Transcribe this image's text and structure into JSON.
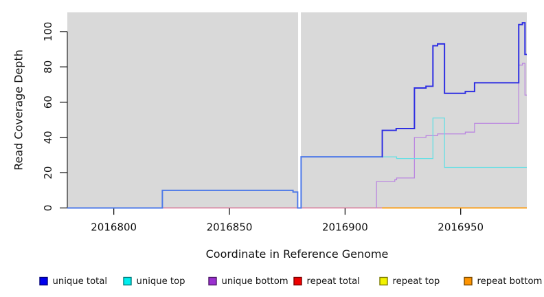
{
  "axes": {
    "x_title": "Coordinate in Reference Genome",
    "y_title": "Read Coverage Depth"
  },
  "chart_data": {
    "type": "line",
    "subtype": "step-after",
    "title": "",
    "xlabel": "Coordinate in Reference Genome",
    "ylabel": "Read Coverage Depth",
    "xlim": [
      2016779.9,
      2016978.6
    ],
    "ylim": [
      -0.2,
      110.9
    ],
    "x_ticks": [
      2016800,
      2016850,
      2016900,
      2016950
    ],
    "y_ticks": [
      0,
      20,
      40,
      60,
      80,
      100
    ],
    "grid": false,
    "panel_bg": "#d9d9d9",
    "axis_color": "#000000",
    "gap_region": {
      "x_start": 2016879.7,
      "x_end": 2016880.9,
      "color": "#ffffff"
    },
    "series": [
      {
        "name": "repeat total",
        "color": "#d4557f",
        "width": 1.2,
        "points": [
          [
            2016779.9,
            0
          ],
          [
            2016978.6,
            0
          ]
        ]
      },
      {
        "name": "repeat top",
        "color": "#f2f200",
        "width": 1.2,
        "points": [
          [
            2016916,
            0
          ],
          [
            2016978.6,
            0
          ]
        ]
      },
      {
        "name": "repeat bottom",
        "color": "#ff9400",
        "width": 1.6,
        "points": [
          [
            2016916,
            0
          ],
          [
            2016978.6,
            0
          ]
        ]
      },
      {
        "name": "unique bottom",
        "color": "#bb87e0",
        "width": 1.3,
        "points": [
          [
            2016913.5,
            0
          ],
          [
            2016913.6,
            15
          ],
          [
            2016921.5,
            16
          ],
          [
            2016922.3,
            17
          ],
          [
            2016930,
            40
          ],
          [
            2016935,
            41
          ],
          [
            2016940,
            42
          ],
          [
            2016952,
            43
          ],
          [
            2016956,
            48
          ],
          [
            2016975.1,
            81
          ],
          [
            2016976.7,
            82
          ],
          [
            2016977.8,
            64
          ],
          [
            2016978.6,
            64
          ]
        ]
      },
      {
        "name": "unique top",
        "color": "#66dfe4",
        "width": 1.3,
        "points": [
          [
            2016881,
            29
          ],
          [
            2016922.3,
            28
          ],
          [
            2016938,
            51
          ],
          [
            2016943,
            23
          ],
          [
            2016978.6,
            23
          ]
        ]
      },
      {
        "name": "unique total low",
        "color": "#4d79e8",
        "width": 2,
        "points": [
          [
            2016779.9,
            0
          ],
          [
            2016821,
            10
          ],
          [
            2016877.5,
            9
          ],
          [
            2016879.5,
            0
          ],
          [
            2016881,
            29
          ],
          [
            2016916,
            29
          ]
        ]
      },
      {
        "name": "unique total high",
        "color": "#2f2fe2",
        "width": 2,
        "points": [
          [
            2016916,
            29
          ],
          [
            2016916.1,
            44
          ],
          [
            2016922.1,
            45
          ],
          [
            2016930,
            68
          ],
          [
            2016935,
            69
          ],
          [
            2016938,
            92
          ],
          [
            2016940,
            93
          ],
          [
            2016943,
            65
          ],
          [
            2016952,
            66
          ],
          [
            2016956,
            71
          ],
          [
            2016975.1,
            104
          ],
          [
            2016976.7,
            105
          ],
          [
            2016977.8,
            87
          ],
          [
            2016978.6,
            87
          ]
        ]
      }
    ],
    "legend": [
      {
        "label": "unique total",
        "fill": "#0000ee",
        "border": "#00007a"
      },
      {
        "label": "unique top",
        "fill": "#00eeee",
        "border": "#007a7a"
      },
      {
        "label": "unique bottom",
        "fill": "#9b30d0",
        "border": "#4d1866"
      },
      {
        "label": "repeat total",
        "fill": "#ee0000",
        "border": "#7a0000"
      },
      {
        "label": "repeat top",
        "fill": "#f2f200",
        "border": "#7a7a00"
      },
      {
        "label": "repeat bottom",
        "fill": "#ff9400",
        "border": "#7a4a00"
      }
    ],
    "legend_position": "bottom"
  }
}
